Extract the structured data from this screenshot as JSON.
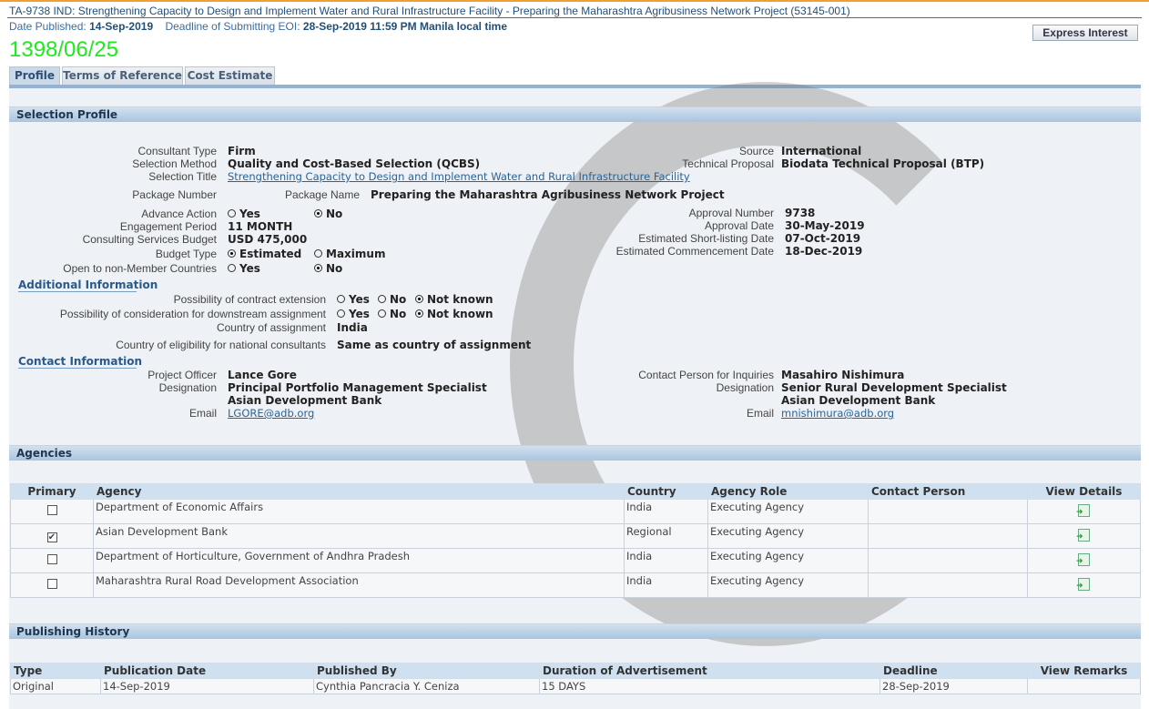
{
  "header": {
    "title": "TA-9738 IND: Strengthening Capacity to Design and Implement Water and Rural Infrastructure Facility - Preparing the Maharashtra Agribusiness Network Project (53145-001)",
    "date_published_label": "Date Published:",
    "date_published": "14-Sep-2019",
    "deadline_label": "Deadline of Submitting EOI:",
    "deadline": "28-Sep-2019 11:59 PM Manila local time",
    "stamp": "1398/06/25",
    "express_interest": "Express Interest"
  },
  "tabs": [
    "Profile",
    "Terms of Reference",
    "Cost Estimate"
  ],
  "selection_profile": {
    "title": "Selection Profile",
    "consultant_type": {
      "label": "Consultant Type",
      "value": "Firm"
    },
    "selection_method": {
      "label": "Selection Method",
      "value": "Quality and Cost-Based Selection (QCBS)"
    },
    "selection_title": {
      "label": "Selection Title",
      "value": "Strengthening Capacity to Design and Implement Water and Rural Infrastructure Facility"
    },
    "package_number": {
      "label": "Package Number",
      "value": ""
    },
    "package_name": {
      "label": "Package Name",
      "value": "Preparing the Maharashtra Agribusiness Network Project"
    },
    "advance_action": {
      "label": "Advance Action",
      "yes": "Yes",
      "no": "No",
      "selected": "No"
    },
    "engagement_period": {
      "label": "Engagement Period",
      "value": "11 MONTH"
    },
    "budget": {
      "label": "Consulting Services Budget",
      "value": "USD 475,000"
    },
    "budget_type": {
      "label": "Budget Type",
      "estimated": "Estimated",
      "maximum": "Maximum",
      "selected": "Estimated"
    },
    "non_member": {
      "label": "Open to non-Member Countries",
      "yes": "Yes",
      "no": "No",
      "selected": "No"
    },
    "source": {
      "label": "Source",
      "value": "International"
    },
    "technical_proposal": {
      "label": "Technical Proposal",
      "value": "Biodata Technical Proposal (BTP)"
    },
    "approval_number": {
      "label": "Approval Number",
      "value": "9738"
    },
    "approval_date": {
      "label": "Approval Date",
      "value": "30-May-2019"
    },
    "shortlisting_date": {
      "label": "Estimated Short-listing Date",
      "value": "07-Oct-2019"
    },
    "commencement_date": {
      "label": "Estimated Commencement Date",
      "value": "18-Dec-2019"
    }
  },
  "additional": {
    "title": "Additional Information",
    "extension": {
      "label": "Possibility of contract extension",
      "yes": "Yes",
      "no": "No",
      "unknown": "Not known",
      "selected": "Not known"
    },
    "downstream": {
      "label": "Possibility of consideration for downstream assignment",
      "yes": "Yes",
      "no": "No",
      "unknown": "Not known",
      "selected": "Not known"
    },
    "country": {
      "label": "Country of assignment",
      "value": "India"
    },
    "eligibility": {
      "label": "Country of eligibility for national consultants",
      "value": "Same as country of assignment"
    }
  },
  "contact": {
    "title": "Contact Information",
    "officer": {
      "label": "Project Officer",
      "value": "Lance Gore",
      "designation_label": "Designation",
      "designation": "Principal Portfolio Management Specialist",
      "org": "Asian Development Bank",
      "email_label": "Email",
      "email": "LGORE@adb.org"
    },
    "inquiries": {
      "label": "Contact Person for Inquiries",
      "value": "Masahiro Nishimura",
      "designation_label": "Designation",
      "designation": "Senior Rural Development Specialist",
      "org": "Asian Development Bank",
      "email_label": "Email",
      "email": "mnishimura@adb.org"
    }
  },
  "agencies": {
    "title": "Agencies",
    "columns": [
      "Primary",
      "Agency",
      "Country",
      "Agency Role",
      "Contact Person",
      "View Details"
    ],
    "rows": [
      {
        "primary": false,
        "agency": "Department of Economic Affairs",
        "country": "India",
        "role": "Executing Agency",
        "contact": ""
      },
      {
        "primary": true,
        "agency": "Asian Development Bank",
        "country": "Regional",
        "role": "Executing Agency",
        "contact": ""
      },
      {
        "primary": false,
        "agency": "Department of Horticulture, Government of Andhra Pradesh",
        "country": "India",
        "role": "Executing Agency",
        "contact": ""
      },
      {
        "primary": false,
        "agency": "Maharashtra Rural Road Development Association",
        "country": "India",
        "role": "Executing Agency",
        "contact": ""
      }
    ]
  },
  "publishing": {
    "title": "Publishing History",
    "columns": [
      "Type",
      "Publication Date",
      "Published By",
      "Duration of Advertisement",
      "Deadline",
      "View Remarks"
    ],
    "rows": [
      {
        "type": "Original",
        "date": "14-Sep-2019",
        "by": "Cynthia Pancracia Y. Ceniza",
        "duration": "15 DAYS",
        "deadline": "28-Sep-2019",
        "remarks": ""
      }
    ]
  }
}
